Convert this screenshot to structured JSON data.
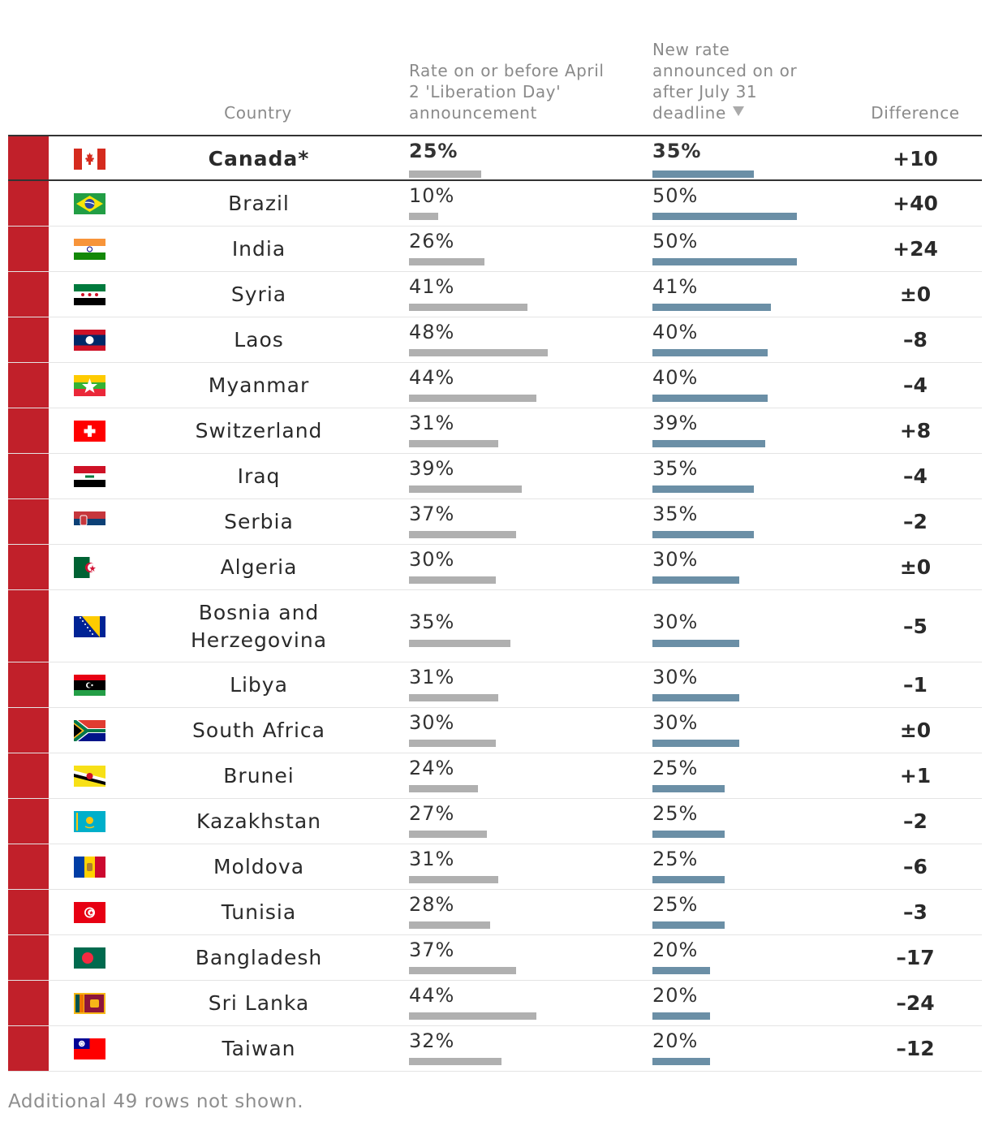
{
  "header": {
    "country": "Country",
    "before_lines": [
      "Rate on or before April",
      "2 'Liberation Day'",
      "announcement"
    ],
    "new_lines": [
      "New rate",
      "announced on or",
      "after July 31",
      "deadline"
    ],
    "difference": "Difference"
  },
  "colors": {
    "marker": "#c1202a",
    "bar_before": "#b0b0b0",
    "bar_new": "#6b8fa6"
  },
  "chart_data": {
    "type": "table",
    "columns": [
      "Country",
      "Rate on or before April 2 'Liberation Day' announcement",
      "New rate announced on or after July 31 deadline",
      "Difference"
    ],
    "sorted_by": "New rate announced on or after July 31 deadline",
    "sort_order": "descending",
    "rows": [
      {
        "country": "Canada*",
        "flag": "canada-flag-icon",
        "before": 25,
        "before_label": "25%",
        "after": 35,
        "after_label": "35%",
        "diff": "+10",
        "featured": true
      },
      {
        "country": "Brazil",
        "flag": "brazil-flag-icon",
        "before": 10,
        "before_label": "10%",
        "after": 50,
        "after_label": "50%",
        "diff": "+40"
      },
      {
        "country": "India",
        "flag": "india-flag-icon",
        "before": 26,
        "before_label": "26%",
        "after": 50,
        "after_label": "50%",
        "diff": "+24"
      },
      {
        "country": "Syria",
        "flag": "syria-flag-icon",
        "before": 41,
        "before_label": "41%",
        "after": 41,
        "after_label": "41%",
        "diff": "±0"
      },
      {
        "country": "Laos",
        "flag": "laos-flag-icon",
        "before": 48,
        "before_label": "48%",
        "after": 40,
        "after_label": "40%",
        "diff": "–8"
      },
      {
        "country": "Myanmar",
        "flag": "myanmar-flag-icon",
        "before": 44,
        "before_label": "44%",
        "after": 40,
        "after_label": "40%",
        "diff": "–4"
      },
      {
        "country": "Switzerland",
        "flag": "switzerland-flag-icon",
        "before": 31,
        "before_label": "31%",
        "after": 39,
        "after_label": "39%",
        "diff": "+8"
      },
      {
        "country": "Iraq",
        "flag": "iraq-flag-icon",
        "before": 39,
        "before_label": "39%",
        "after": 35,
        "after_label": "35%",
        "diff": "–4"
      },
      {
        "country": "Serbia",
        "flag": "serbia-flag-icon",
        "before": 37,
        "before_label": "37%",
        "after": 35,
        "after_label": "35%",
        "diff": "–2"
      },
      {
        "country": "Algeria",
        "flag": "algeria-flag-icon",
        "before": 30,
        "before_label": "30%",
        "after": 30,
        "after_label": "30%",
        "diff": "±0"
      },
      {
        "country": "Bosnia and Herzegovina",
        "country_lines": [
          "Bosnia and",
          "Herzegovina"
        ],
        "flag": "bosnia-flag-icon",
        "before": 35,
        "before_label": "35%",
        "after": 30,
        "after_label": "30%",
        "diff": "–5"
      },
      {
        "country": "Libya",
        "flag": "libya-flag-icon",
        "before": 31,
        "before_label": "31%",
        "after": 30,
        "after_label": "30%",
        "diff": "–1"
      },
      {
        "country": "South Africa",
        "flag": "south-africa-flag-icon",
        "before": 30,
        "before_label": "30%",
        "after": 30,
        "after_label": "30%",
        "diff": "±0"
      },
      {
        "country": "Brunei",
        "flag": "brunei-flag-icon",
        "before": 24,
        "before_label": "24%",
        "after": 25,
        "after_label": "25%",
        "diff": "+1"
      },
      {
        "country": "Kazakhstan",
        "flag": "kazakhstan-flag-icon",
        "before": 27,
        "before_label": "27%",
        "after": 25,
        "after_label": "25%",
        "diff": "–2"
      },
      {
        "country": "Moldova",
        "flag": "moldova-flag-icon",
        "before": 31,
        "before_label": "31%",
        "after": 25,
        "after_label": "25%",
        "diff": "–6"
      },
      {
        "country": "Tunisia",
        "flag": "tunisia-flag-icon",
        "before": 28,
        "before_label": "28%",
        "after": 25,
        "after_label": "25%",
        "diff": "–3"
      },
      {
        "country": "Bangladesh",
        "flag": "bangladesh-flag-icon",
        "before": 37,
        "before_label": "37%",
        "after": 20,
        "after_label": "20%",
        "diff": "–17"
      },
      {
        "country": "Sri Lanka",
        "flag": "sri-lanka-flag-icon",
        "before": 44,
        "before_label": "44%",
        "after": 20,
        "after_label": "20%",
        "diff": "–24"
      },
      {
        "country": "Taiwan",
        "flag": "taiwan-flag-icon",
        "before": 32,
        "before_label": "32%",
        "after": 20,
        "after_label": "20%",
        "diff": "–12"
      }
    ]
  },
  "footnote": "Additional 49 rows not shown."
}
